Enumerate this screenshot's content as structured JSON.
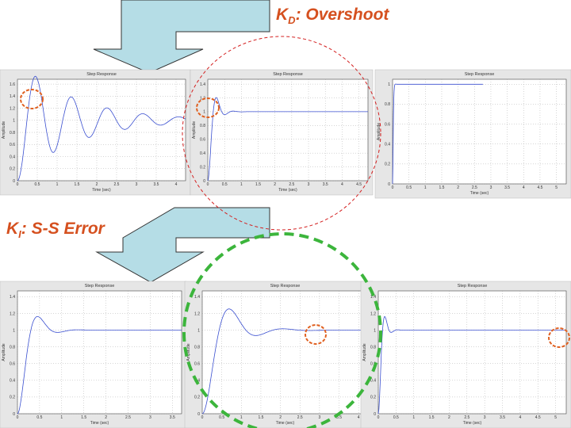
{
  "headings": {
    "kd": {
      "letter": "K",
      "sub": "D",
      "rest": ": Overshoot"
    },
    "ki": {
      "letter": "K",
      "sub": "I",
      "rest": ": S-S Error"
    }
  },
  "plots": [
    {
      "title": "Step Response",
      "x_label": "Time (sec)",
      "y_label": "Amplitude",
      "x_ticks": [
        "0",
        "0.5",
        "1",
        "1.5",
        "2",
        "2.5",
        "3",
        "3.5",
        "4"
      ],
      "y_ticks": [
        "0",
        "0.2",
        "0.4",
        "0.6",
        "0.8",
        "1",
        "1.2",
        "1.4",
        "1.6"
      ]
    },
    {
      "title": "Step Response",
      "x_label": "Time (sec)",
      "y_label": "Amplitude",
      "x_ticks": [
        "0",
        "0.5",
        "1",
        "1.5",
        "2",
        "2.5",
        "3",
        "3.5",
        "4",
        "4.5"
      ],
      "y_ticks": [
        "0",
        "0.2",
        "0.4",
        "0.6",
        "0.8",
        "1",
        "1.2",
        "1.4"
      ]
    },
    {
      "title": "Step Response",
      "x_label": "Time (sec)",
      "y_label": "Amplitude",
      "x_ticks": [
        "0",
        "0.5",
        "1",
        "1.5",
        "2",
        "2.5",
        "3",
        "3.5",
        "4",
        "4.5",
        "5"
      ],
      "y_ticks": [
        "0",
        "0.2",
        "0.4",
        "0.6",
        "0.8",
        "1"
      ]
    },
    {
      "title": "Step Response",
      "x_label": "Time (sec)",
      "y_label": "Amplitude",
      "x_ticks": [
        "0",
        "0.5",
        "1",
        "1.5",
        "2",
        "2.5",
        "3",
        "3.5"
      ],
      "y_ticks": [
        "0",
        "0.2",
        "0.4",
        "0.6",
        "0.8",
        "1",
        "1.2",
        "1.4"
      ]
    },
    {
      "title": "Step Response",
      "x_label": "Time (sec)",
      "y_label": "Amplitude",
      "x_ticks": [
        "0",
        "0.5",
        "1",
        "1.5",
        "2",
        "2.5",
        "3",
        "3.5",
        "4"
      ],
      "y_ticks": [
        "0",
        "0.2",
        "0.4",
        "0.6",
        "0.8",
        "1",
        "1.2",
        "1.4"
      ]
    },
    {
      "title": "Step Response",
      "x_label": "Time (sec)",
      "y_label": "Amplitude",
      "x_ticks": [
        "0",
        "0.5",
        "1",
        "1.5",
        "2",
        "2.5",
        "3",
        "3.5",
        "4",
        "4.5",
        "5"
      ],
      "y_ticks": [
        "0",
        "0.2",
        "0.4",
        "0.6",
        "0.8",
        "1",
        "1.2",
        "1.4"
      ]
    }
  ]
}
